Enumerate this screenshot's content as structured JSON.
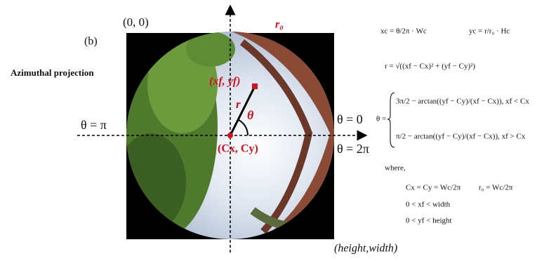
{
  "panel_label": "(b)",
  "title": "Azimuthal projection",
  "origin_label": "(0, 0)",
  "radius_label": "r₀",
  "point_label": "(xf, yf)",
  "r_label": "r",
  "angle_label": "θ",
  "center_label": "(Cx, Cy)",
  "theta_pi": "θ = π",
  "theta_0": "θ = 0",
  "theta_2pi": "θ = 2π",
  "size_label": "(height,width)",
  "equations": {
    "xc": "xc = θ/2π · Wc",
    "yc": "yc = r/r₀ · Hc",
    "r": "r = √((xf − Cx)² + (yf − Cy)²)",
    "theta": "θ =",
    "case1": "3π/2 − arctan((yf − Cy)/(xf − Cx)), xf < Cx",
    "case2": "π/2 − arctan((yf − Cy)/(xf − Cx)), xf > Cx",
    "where": "where,",
    "cxcy": "Cx = Cy = Wc/2π",
    "r0": "r₀ = Wc/2π",
    "xrange": "0 < xf < width",
    "yrange": "0 < yf < height"
  }
}
